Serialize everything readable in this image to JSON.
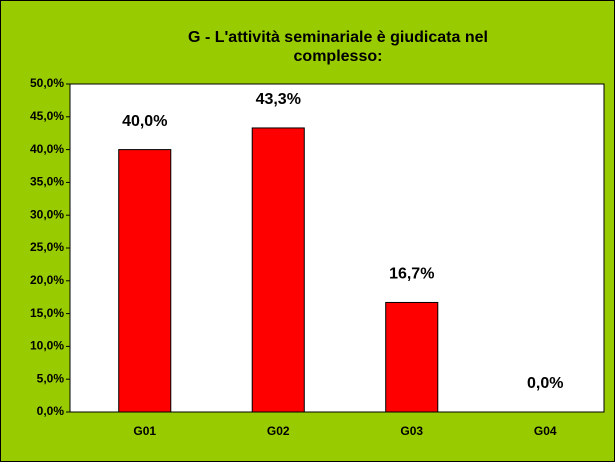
{
  "chart_data": {
    "type": "bar",
    "title": [
      "G - L'attività seminariale è giudicata nel",
      "complesso:"
    ],
    "categories": [
      "G01",
      "G02",
      "G03",
      "G04"
    ],
    "values": [
      40,
      43.3,
      16.7,
      0
    ],
    "value_labels": [
      "40,0%",
      "43,3%",
      "16,7%",
      "0,0%"
    ],
    "color": "#ff0000",
    "ylim": [
      0,
      50
    ],
    "yticks": [
      {
        "value": 0,
        "label": "0,0%"
      },
      {
        "value": 5,
        "label": "5,0%"
      },
      {
        "value": 10,
        "label": "10,0%"
      },
      {
        "value": 15,
        "label": "15,0%"
      },
      {
        "value": 20,
        "label": "20,0%"
      },
      {
        "value": 25,
        "label": "25,0%"
      },
      {
        "value": 30,
        "label": "30,0%"
      },
      {
        "value": 35,
        "label": "35,0%"
      },
      {
        "value": 40,
        "label": "40,0%"
      },
      {
        "value": 45,
        "label": "45,0%"
      },
      {
        "value": 50,
        "label": "50,0%"
      }
    ],
    "grid": false
  }
}
